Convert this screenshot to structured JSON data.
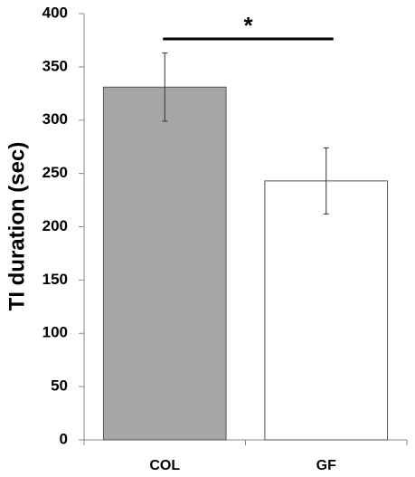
{
  "chart_data": {
    "type": "bar",
    "y_label": "TI duration (sec)",
    "categories": [
      "COL",
      "GF"
    ],
    "values": [
      331,
      243
    ],
    "errors": [
      32,
      31
    ],
    "colors": [
      "#a6a6a6",
      "#ffffff"
    ],
    "ylim": [
      0,
      400
    ],
    "yticks": [
      0,
      50,
      100,
      150,
      200,
      250,
      300,
      350,
      400
    ],
    "annotation": "*",
    "grid": false
  }
}
